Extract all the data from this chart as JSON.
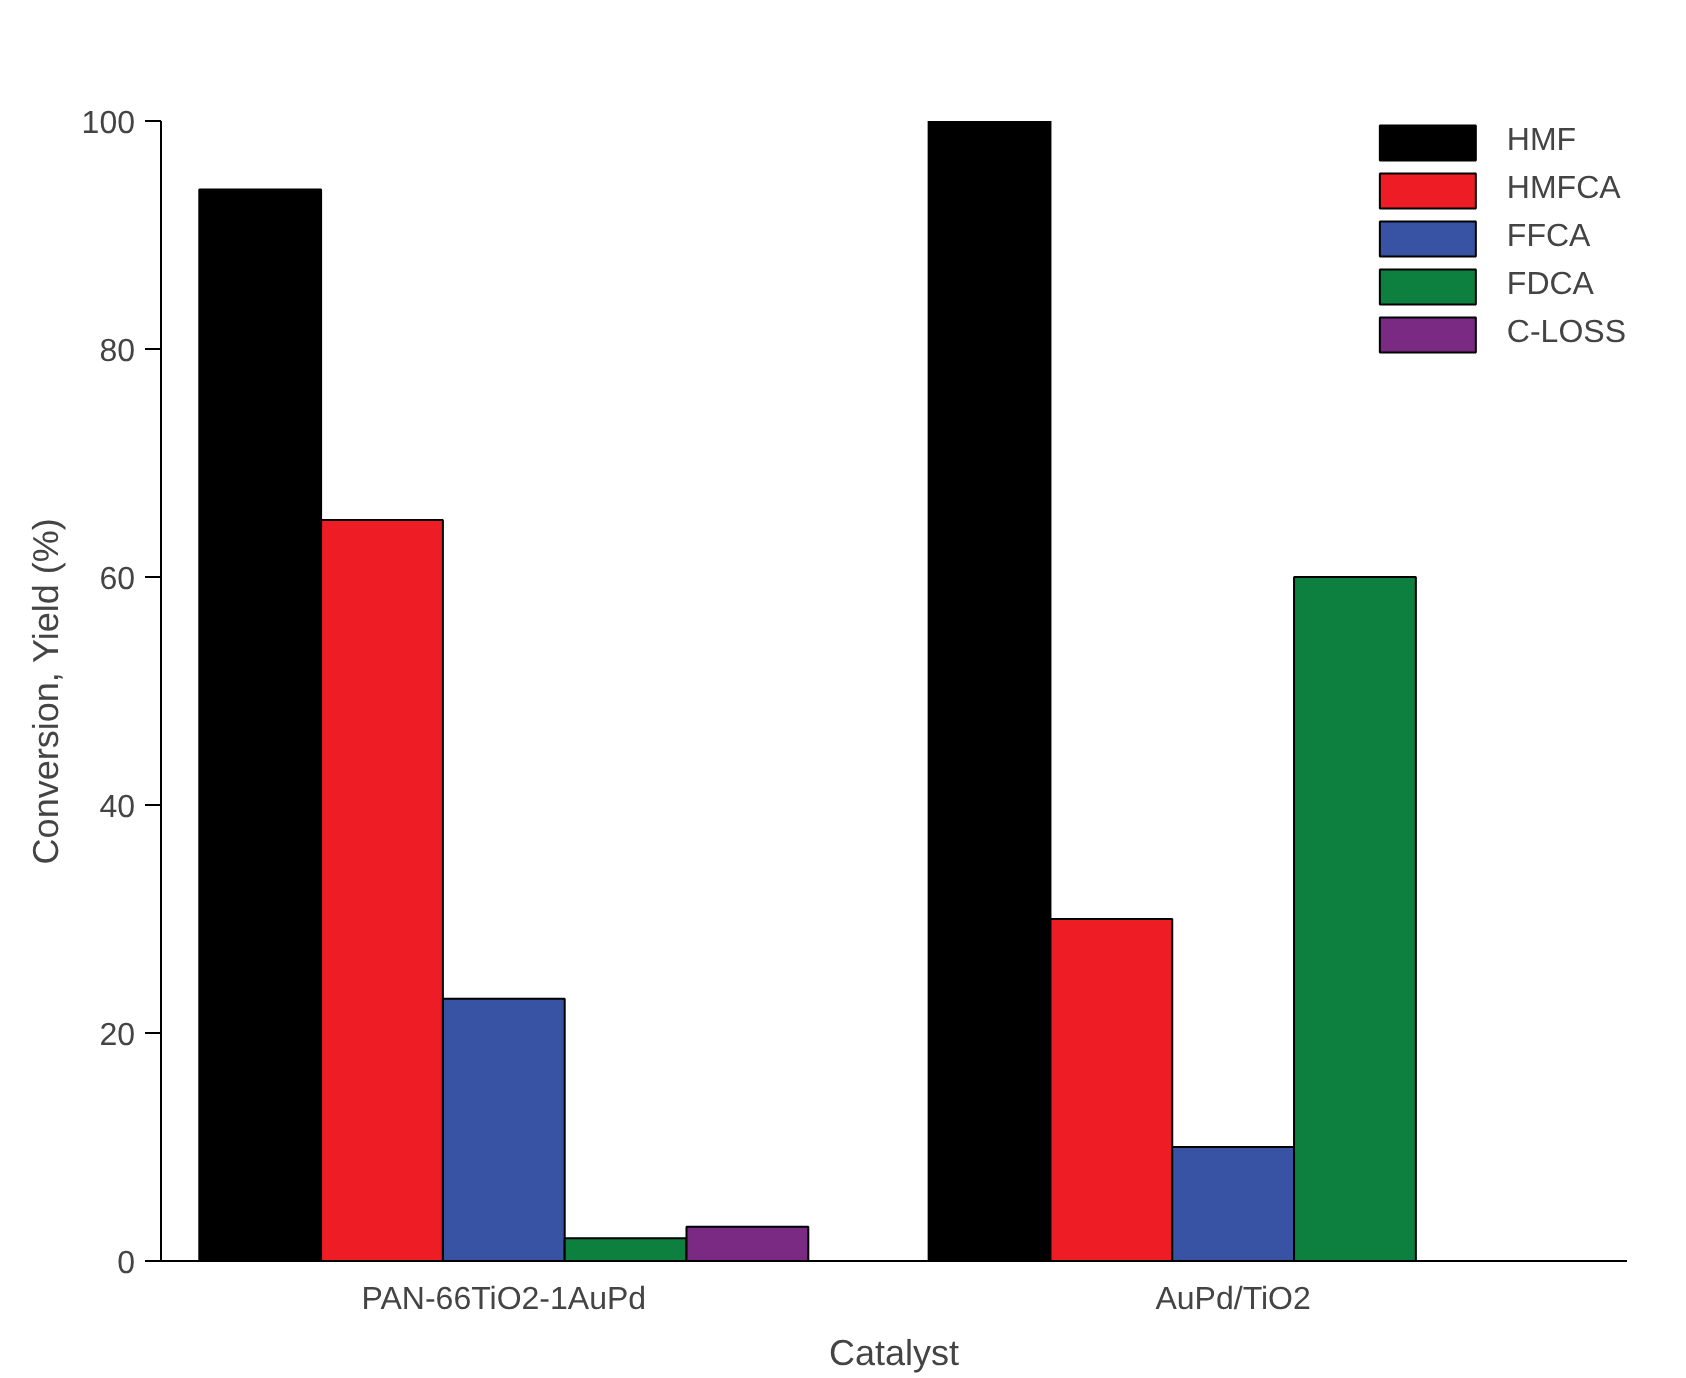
{
  "chart_data": {
    "type": "bar",
    "xlabel": "Catalyst",
    "ylabel": "Conversion, Yield (%)",
    "categories": [
      "PAN-66TiO2-1AuPd",
      "AuPd/TiO2"
    ],
    "series": [
      {
        "name": "HMF",
        "color": "#000000",
        "values": [
          94,
          100
        ]
      },
      {
        "name": "HMFCA",
        "color": "#ee1c25",
        "values": [
          65,
          30
        ]
      },
      {
        "name": "FFCA",
        "color": "#3953a4",
        "values": [
          23,
          10
        ]
      },
      {
        "name": "FDCA",
        "color": "#0d8040",
        "values": [
          2,
          60
        ]
      },
      {
        "name": "C-LOSS",
        "color": "#7b2a83",
        "values": [
          3,
          null
        ]
      }
    ],
    "ylim": [
      0,
      100
    ],
    "yticks": [
      0,
      20,
      40,
      60,
      80,
      100
    ],
    "grid": false,
    "legend": "top right"
  }
}
